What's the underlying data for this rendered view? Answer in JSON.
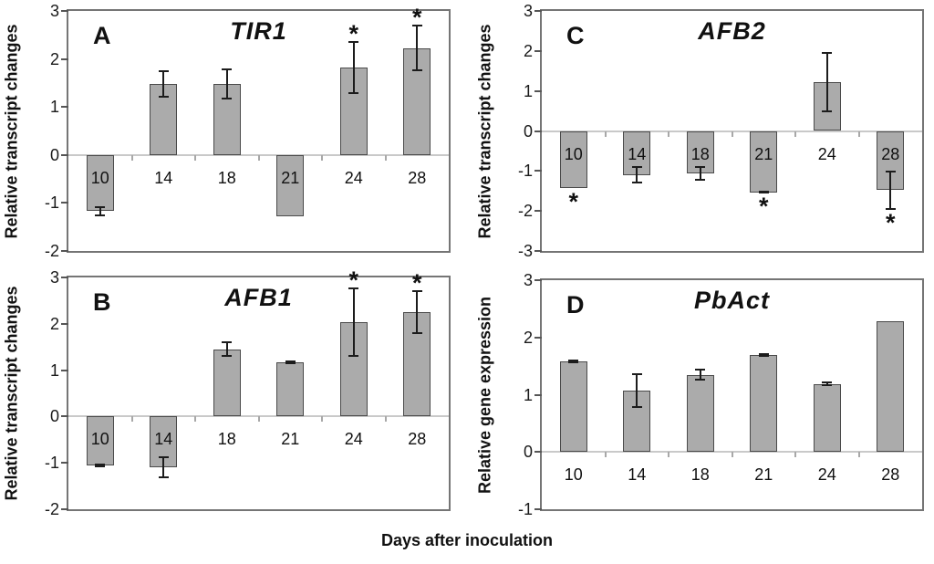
{
  "figure": {
    "xlabel": "Days after inoculation",
    "background_color": "#ffffff",
    "bar_fill_color": "#ababab",
    "bar_border_color": "#4a4a4a",
    "error_bar_color": "#1c1c1c",
    "zero_line_color": "#c9c9c9",
    "sig_marker": "*"
  },
  "chart_data": [
    {
      "type": "bar",
      "panel_label": "A",
      "title": "TIR1",
      "ylabel": "Relative transcript changes",
      "xlabel": "Days after inoculation",
      "categories": [
        "10",
        "14",
        "18",
        "21",
        "24",
        "28"
      ],
      "values": [
        -1.17,
        1.48,
        1.48,
        -1.27,
        1.82,
        2.23
      ],
      "errors": [
        0.09,
        0.26,
        0.3,
        0,
        0.53,
        0.47
      ],
      "significant": [
        false,
        false,
        false,
        false,
        true,
        true
      ],
      "ylim": [
        -2,
        3
      ],
      "yticks": [
        3,
        2,
        1,
        0,
        -1,
        -2
      ],
      "grid": false,
      "legend": "none"
    },
    {
      "type": "bar",
      "panel_label": "B",
      "title": "AFB1",
      "ylabel": "Relative transcript changes",
      "xlabel": "Days after inoculation",
      "categories": [
        "10",
        "14",
        "18",
        "21",
        "24",
        "28"
      ],
      "values": [
        -1.06,
        -1.1,
        1.45,
        1.16,
        2.04,
        2.25
      ],
      "errors": [
        0.02,
        0.22,
        0.15,
        0.02,
        0.73,
        0.46
      ],
      "significant": [
        false,
        false,
        false,
        false,
        true,
        true
      ],
      "ylim": [
        -2,
        3
      ],
      "yticks": [
        3,
        2,
        1,
        0,
        -1,
        -2
      ],
      "grid": false,
      "legend": "none"
    },
    {
      "type": "bar",
      "panel_label": "C",
      "title": "AFB2",
      "ylabel": "Relative transcript changes",
      "xlabel": "Days after inoculation",
      "categories": [
        "10",
        "14",
        "18",
        "21",
        "24",
        "28"
      ],
      "values": [
        -1.42,
        -1.1,
        -1.06,
        -1.53,
        1.21,
        -1.48
      ],
      "errors": [
        0,
        0.2,
        0.15,
        0.02,
        0.73,
        0.47
      ],
      "significant": [
        true,
        false,
        false,
        true,
        false,
        true
      ],
      "ylim": [
        -3,
        3
      ],
      "yticks": [
        3,
        2,
        1,
        0,
        -1,
        -2,
        -3
      ],
      "grid": false,
      "legend": "none"
    },
    {
      "type": "bar",
      "panel_label": "D",
      "title": "PbAct",
      "ylabel": "Relative gene expression",
      "xlabel": "Days after inoculation",
      "categories": [
        "10",
        "14",
        "18",
        "21",
        "24",
        "28"
      ],
      "values": [
        1.58,
        1.07,
        1.35,
        1.69,
        1.19,
        2.29
      ],
      "errors": [
        0.02,
        0.29,
        0.09,
        0.02,
        0.02,
        0
      ],
      "significant": [
        false,
        false,
        false,
        false,
        false,
        false
      ],
      "ylim": [
        -1,
        3
      ],
      "yticks": [
        3,
        2,
        1,
        0,
        -1
      ],
      "grid": false,
      "legend": "none"
    }
  ]
}
